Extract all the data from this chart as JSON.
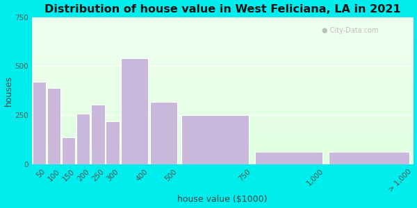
{
  "title": "Distribution of house value in West Feliciana, LA in 2021",
  "xlabel": "house value ($1000)",
  "ylabel": "houses",
  "bin_edges": [
    0,
    50,
    100,
    150,
    200,
    250,
    300,
    400,
    500,
    750,
    1000,
    1300
  ],
  "bin_labels": [
    "50",
    "100",
    "150",
    "200",
    "250",
    "300",
    "400",
    "500",
    "750",
    "1,000",
    "> 1,000"
  ],
  "bar_values": [
    420,
    390,
    140,
    260,
    305,
    220,
    540,
    320,
    250,
    65,
    65
  ],
  "bar_color": "#c9b8dc",
  "bar_edgecolor": "#ffffff",
  "ylim": [
    0,
    750
  ],
  "yticks": [
    0,
    250,
    500,
    750
  ],
  "bg_color_outer": "#00eded",
  "title_fontsize": 11.5,
  "axis_label_fontsize": 9,
  "tick_fontsize": 7.5,
  "watermark_text": "City-Data.com"
}
